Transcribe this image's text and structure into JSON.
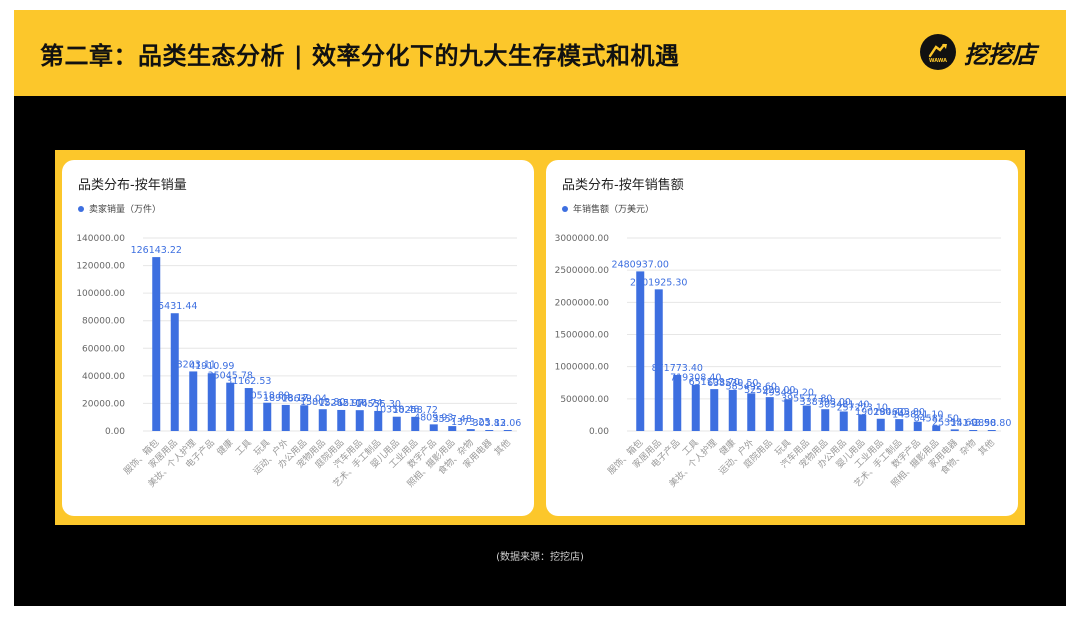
{
  "header": {
    "title": "第二章：品类生态分析 | 效率分化下的九大生存模式和机遇"
  },
  "logo": {
    "mark": "WAWA",
    "text": "挖挖店",
    "icon": "digger-icon"
  },
  "source": "(数据来源：挖挖店)",
  "colors": {
    "header_bg": "#FCC72B",
    "background": "#000000",
    "bar": "#3D6FE0"
  },
  "chart_data": [
    {
      "type": "bar",
      "title": "品类分布-按年销量",
      "legend": "卖家销量（万件）",
      "ylim": [
        0,
        140000
      ],
      "yticks": [
        "140000.00",
        "120000.00",
        "100000.00",
        "80000.00",
        "60000.00",
        "40000.00",
        "20000.00",
        "0.00"
      ],
      "categories": [
        "服饰、箱包",
        "家居用品",
        "个人护理",
        "电子产品",
        "健康",
        "工具",
        "玩具",
        "运动、户外",
        "办公用品",
        "宠物用品",
        "庭院用品",
        "汽车用品",
        "手工制品",
        "婴儿用品",
        "工业用品",
        "数字产品",
        "摄影用品",
        "杂物",
        "家用电器",
        "其他"
      ],
      "tick_labels": [
        "服饰、箱包",
        "家居用品",
        "美妆、个人护理",
        "电子产品",
        "健康",
        "工具",
        "玩具",
        "运动、户外",
        "办公用品",
        "宠物用品",
        "庭院用品",
        "汽车用品",
        "艺术、手工制品",
        "婴儿用品",
        "工业用品",
        "数字产品",
        "照相、摄影用品",
        "食物、杂物",
        "家用电器",
        "其他"
      ],
      "values": [
        126143.22,
        85431.44,
        43203.11,
        41910.99,
        35045.78,
        31162.53,
        20518.89,
        18908.17,
        18639.04,
        15802.8,
        15262.97,
        15106.74,
        14555.3,
        10358.48,
        10258.72,
        4809.93,
        3557.48,
        1373.25,
        303.83,
        12.06
      ],
      "labels": [
        "126143.22",
        "85431.44",
        "43203.11",
        "41910.99",
        "35045.78",
        "31162.53",
        "20518.89",
        "18908.17",
        "18639.04",
        "15802.80",
        "15262.97",
        "15106.74",
        "14555.30",
        "10358.48",
        "10258.72",
        "4809.93",
        "3557.48",
        "1373.25",
        "303.83",
        "12.06"
      ]
    },
    {
      "type": "bar",
      "title": "品类分布-按年销售额",
      "legend": "年销售额（万美元）",
      "ylim": [
        0,
        3000000
      ],
      "yticks": [
        "3000000.00",
        "2500000.00",
        "2000000.00",
        "1500000.00",
        "1000000.00",
        "500000.00",
        "0.00"
      ],
      "categories": [
        "服饰、箱包",
        "家居用品",
        "电子产品",
        "工具",
        "个人护理",
        "健康",
        "运动、户外",
        "庭院用品",
        "玩具",
        "汽车用品",
        "宠物用品",
        "办公用品",
        "婴儿用品",
        "工业用品",
        "手工制品",
        "数字产品",
        "摄影用品",
        "家用电器",
        "杂物",
        "其他"
      ],
      "tick_labels": [
        "服饰、箱包",
        "家居用品",
        "电子产品",
        "工具",
        "美妆、个人护理",
        "健康",
        "运动、户外",
        "庭院用品",
        "玩具",
        "汽车用品",
        "宠物用品",
        "办公用品",
        "婴儿用品",
        "工业用品",
        "艺术、手工制品",
        "数字产品",
        "照相、摄影用品",
        "家用电器",
        "食物、杂物",
        "其他"
      ],
      "values": [
        2480937.0,
        2201925.3,
        871773.4,
        719308.4,
        651103.7,
        638530.5,
        585492.6,
        525920.0,
        493449.2,
        395577.8,
        338798.0,
        303481.4,
        257273.1,
        190290.4,
        184633.8,
        143821.1,
        84582.5,
        25355.6,
        14143.9,
        3858.8
      ],
      "labels": [
        "2480937.00",
        "2201925.30",
        "871773.40",
        "719308.40",
        "651103.70",
        "638530.50",
        "585492.60",
        "525920.00",
        "493449.20",
        "395577.80",
        "338798.00",
        "303481.40",
        "257273.10",
        "190290.40",
        "184633.80",
        "143821.10",
        "84582.50",
        "25355.60",
        "14143.90",
        "3858.80"
      ]
    }
  ]
}
